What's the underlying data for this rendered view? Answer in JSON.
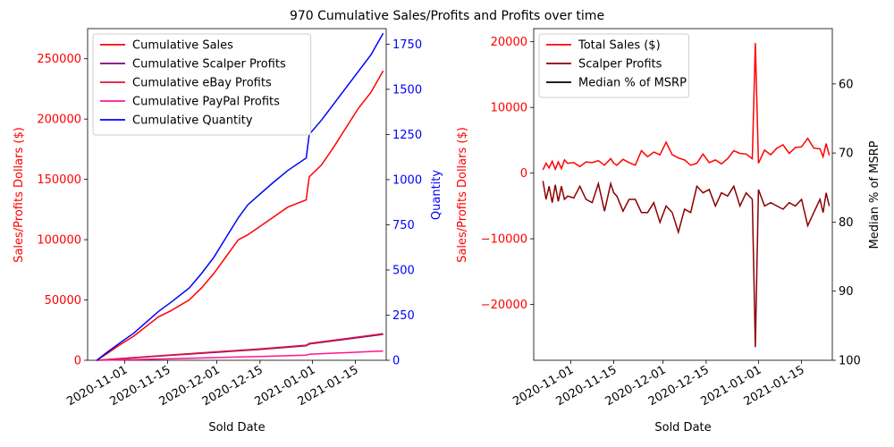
{
  "suptitle": "970 Cumulative Sales/Profits and Profits over time",
  "chart_data": [
    {
      "type": "line",
      "xlabel": "Sold Date",
      "ylabel": "Sales/Profits Dollars ($)",
      "y2label": "Quantity",
      "xlim": [
        "2020-10-20",
        "2021-01-25"
      ],
      "ylim": [
        0,
        275000
      ],
      "y2lim": [
        0,
        1836
      ],
      "xticks": [
        "2020-11-01",
        "2020-11-15",
        "2020-12-01",
        "2020-12-15",
        "2021-01-01",
        "2021-01-15"
      ],
      "yticks": [
        0,
        50000,
        100000,
        150000,
        200000,
        250000
      ],
      "y2ticks": [
        0,
        250,
        500,
        750,
        1000,
        1250,
        1500,
        1750
      ],
      "legend": "upper-left",
      "colors": {
        "left_axis": "#ff0000",
        "right_axis": "#0000ff"
      },
      "series": [
        {
          "name": "Cumulative Sales",
          "color": "#ff0000",
          "axis": "left",
          "x": [
            "2020-10-23",
            "2020-10-26",
            "2020-10-30",
            "2020-11-04",
            "2020-11-08",
            "2020-11-12",
            "2020-11-16",
            "2020-11-22",
            "2020-11-26",
            "2020-11-30",
            "2020-12-04",
            "2020-12-08",
            "2020-12-11",
            "2020-12-15",
            "2020-12-19",
            "2020-12-24",
            "2020-12-30",
            "2020-12-31",
            "2021-01-04",
            "2021-01-08",
            "2021-01-12",
            "2021-01-16",
            "2021-01-20",
            "2021-01-24"
          ],
          "y": [
            0,
            5000,
            12000,
            20000,
            28000,
            36000,
            41000,
            50000,
            60000,
            72000,
            86000,
            100000,
            104000,
            111000,
            118000,
            127000,
            133000,
            152000,
            162000,
            177000,
            193000,
            209000,
            222000,
            240000
          ]
        },
        {
          "name": "Cumulative Scalper Profits",
          "color": "#800080",
          "axis": "left",
          "x": [
            "2020-10-23",
            "2020-11-15",
            "2020-12-15",
            "2020-12-30",
            "2020-12-31",
            "2021-01-24"
          ],
          "y": [
            0,
            4000,
            9000,
            12000,
            13500,
            21500
          ]
        },
        {
          "name": "Cumulative eBay Profits",
          "color": "#dc143c",
          "axis": "left",
          "x": [
            "2020-10-23",
            "2020-11-15",
            "2020-12-15",
            "2020-12-30",
            "2020-12-31",
            "2021-01-24"
          ],
          "y": [
            0,
            4200,
            9500,
            12500,
            14000,
            22000
          ]
        },
        {
          "name": "Cumulative PayPal Profits",
          "color": "#ff1493",
          "axis": "left",
          "x": [
            "2020-10-23",
            "2020-11-15",
            "2020-12-15",
            "2020-12-30",
            "2020-12-31",
            "2021-01-24"
          ],
          "y": [
            0,
            1200,
            3200,
            4300,
            5000,
            7700
          ]
        },
        {
          "name": "Cumulative Quantity",
          "color": "#0000ff",
          "axis": "right",
          "x": [
            "2020-10-23",
            "2020-10-26",
            "2020-10-30",
            "2020-11-04",
            "2020-11-08",
            "2020-11-12",
            "2020-11-16",
            "2020-11-22",
            "2020-11-26",
            "2020-11-30",
            "2020-12-04",
            "2020-12-08",
            "2020-12-11",
            "2020-12-15",
            "2020-12-19",
            "2020-12-24",
            "2020-12-30",
            "2020-12-31",
            "2021-01-04",
            "2021-01-08",
            "2021-01-12",
            "2021-01-16",
            "2021-01-20",
            "2021-01-24"
          ],
          "y": [
            0,
            40,
            90,
            150,
            210,
            270,
            320,
            400,
            480,
            570,
            680,
            790,
            860,
            920,
            980,
            1050,
            1120,
            1250,
            1330,
            1420,
            1510,
            1600,
            1690,
            1810
          ]
        }
      ]
    },
    {
      "type": "line",
      "xlabel": "Sold Date",
      "ylabel": "Sales/Profits Dollars ($)",
      "y2label": "Median % of MSRP",
      "xlim": [
        "2020-10-20",
        "2021-01-25"
      ],
      "ylim": [
        -28500,
        22000
      ],
      "y2lim": [
        100,
        52
      ],
      "y2_inverted": true,
      "xticks": [
        "2020-11-01",
        "2020-11-15",
        "2020-12-01",
        "2020-12-15",
        "2021-01-01",
        "2021-01-15"
      ],
      "yticks": [
        -20000,
        -10000,
        0,
        10000,
        20000
      ],
      "y2ticks": [
        60,
        70,
        80,
        90,
        100
      ],
      "legend": "upper-left",
      "colors": {
        "left_axis": "#ff0000",
        "right_axis": "#000000"
      },
      "series": [
        {
          "name": "Total Sales ($)",
          "color": "#ff0000",
          "axis": "left",
          "x": [
            "2020-10-23",
            "2020-10-24",
            "2020-10-25",
            "2020-10-26",
            "2020-10-27",
            "2020-10-28",
            "2020-10-29",
            "2020-10-30",
            "2020-10-31",
            "2020-11-02",
            "2020-11-04",
            "2020-11-06",
            "2020-11-08",
            "2020-11-10",
            "2020-11-12",
            "2020-11-14",
            "2020-11-15",
            "2020-11-16",
            "2020-11-18",
            "2020-11-20",
            "2020-11-22",
            "2020-11-24",
            "2020-11-26",
            "2020-11-28",
            "2020-11-30",
            "2020-12-02",
            "2020-12-04",
            "2020-12-06",
            "2020-12-08",
            "2020-12-10",
            "2020-12-12",
            "2020-12-14",
            "2020-12-16",
            "2020-12-18",
            "2020-12-20",
            "2020-12-22",
            "2020-12-24",
            "2020-12-26",
            "2020-12-28",
            "2020-12-30",
            "2020-12-31",
            "2021-01-01",
            "2021-01-03",
            "2021-01-05",
            "2021-01-07",
            "2021-01-09",
            "2021-01-11",
            "2021-01-13",
            "2021-01-15",
            "2021-01-17",
            "2021-01-19",
            "2021-01-21",
            "2021-01-22",
            "2021-01-23",
            "2021-01-24"
          ],
          "y": [
            500,
            1500,
            800,
            1800,
            600,
            1700,
            700,
            2000,
            1500,
            1600,
            1000,
            1700,
            1600,
            1900,
            1200,
            2200,
            1500,
            1200,
            2100,
            1600,
            1200,
            3400,
            2500,
            3200,
            2800,
            4700,
            2800,
            2300,
            2000,
            1200,
            1500,
            2900,
            1600,
            2000,
            1400,
            2200,
            3400,
            3000,
            2900,
            2200,
            19800,
            1500,
            3500,
            2800,
            3800,
            4300,
            3000,
            3900,
            4000,
            5300,
            3800,
            3700,
            2500,
            4500,
            2700
          ]
        },
        {
          "name": "Scalper Profits",
          "color": "#8b0000",
          "axis": "left",
          "x": [
            "2020-10-23",
            "2020-10-24",
            "2020-10-25",
            "2020-10-26",
            "2020-10-27",
            "2020-10-28",
            "2020-10-29",
            "2020-10-30",
            "2020-10-31",
            "2020-11-02",
            "2020-11-04",
            "2020-11-06",
            "2020-11-08",
            "2020-11-10",
            "2020-11-12",
            "2020-11-14",
            "2020-11-15",
            "2020-11-16",
            "2020-11-18",
            "2020-11-20",
            "2020-11-22",
            "2020-11-24",
            "2020-11-26",
            "2020-11-28",
            "2020-11-30",
            "2020-12-02",
            "2020-12-04",
            "2020-12-06",
            "2020-12-08",
            "2020-12-10",
            "2020-12-12",
            "2020-12-14",
            "2020-12-16",
            "2020-12-18",
            "2020-12-20",
            "2020-12-22",
            "2020-12-24",
            "2020-12-26",
            "2020-12-28",
            "2020-12-30",
            "2020-12-31",
            "2021-01-01",
            "2021-01-03",
            "2021-01-05",
            "2021-01-07",
            "2021-01-09",
            "2021-01-11",
            "2021-01-13",
            "2021-01-15",
            "2021-01-17",
            "2021-01-19",
            "2021-01-21",
            "2021-01-22",
            "2021-01-23",
            "2021-01-24"
          ],
          "y": [
            -1200,
            -4000,
            -2000,
            -4500,
            -1800,
            -4300,
            -2000,
            -4000,
            -3500,
            -3800,
            -2000,
            -4000,
            -4500,
            -1600,
            -5800,
            -1600,
            -3000,
            -3500,
            -5800,
            -4000,
            -4000,
            -6000,
            -6000,
            -4500,
            -7500,
            -5000,
            -6000,
            -9000,
            -5500,
            -6000,
            -2000,
            -3000,
            -2500,
            -5000,
            -3000,
            -3500,
            -2000,
            -5000,
            -3000,
            -4000,
            -26500,
            -2500,
            -5000,
            -4500,
            -5000,
            -5500,
            -4500,
            -5000,
            -4000,
            -8000,
            -6000,
            -4000,
            -6000,
            -3000,
            -5000
          ]
        },
        {
          "name": "Median % of MSRP",
          "color": "#000000",
          "axis": "right",
          "x": [],
          "y": []
        }
      ]
    }
  ]
}
